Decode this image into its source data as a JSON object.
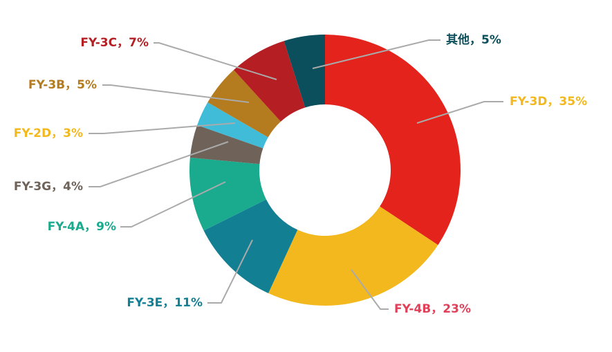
{
  "chart_data": {
    "type": "donut",
    "categories": [
      "FY-3D",
      "FY-4B",
      "FY-3E",
      "FY-4A",
      "FY-3G",
      "FY-2D",
      "FY-3B",
      "FY-3C",
      "其他"
    ],
    "values": [
      35,
      23,
      11,
      9,
      4,
      3,
      5,
      7,
      5
    ],
    "value_labels": [
      "35%",
      "23%",
      "11%",
      "9%",
      "4%",
      "3%",
      "5%",
      "7%",
      "5%"
    ],
    "separator": "，",
    "colors": [
      "#e3231c",
      "#f2b81d",
      "#137f93",
      "#1aab8f",
      "#6f6359",
      "#41bcd8",
      "#b57b1f",
      "#b51f24",
      "#0b4f5c"
    ],
    "label_colors": [
      "#f2b81d",
      "#e0405a",
      "#137f93",
      "#1aab8f",
      "#6f6359",
      "#f2b81d",
      "#b57b1f",
      "#b51f24",
      "#0b4f5c"
    ]
  }
}
